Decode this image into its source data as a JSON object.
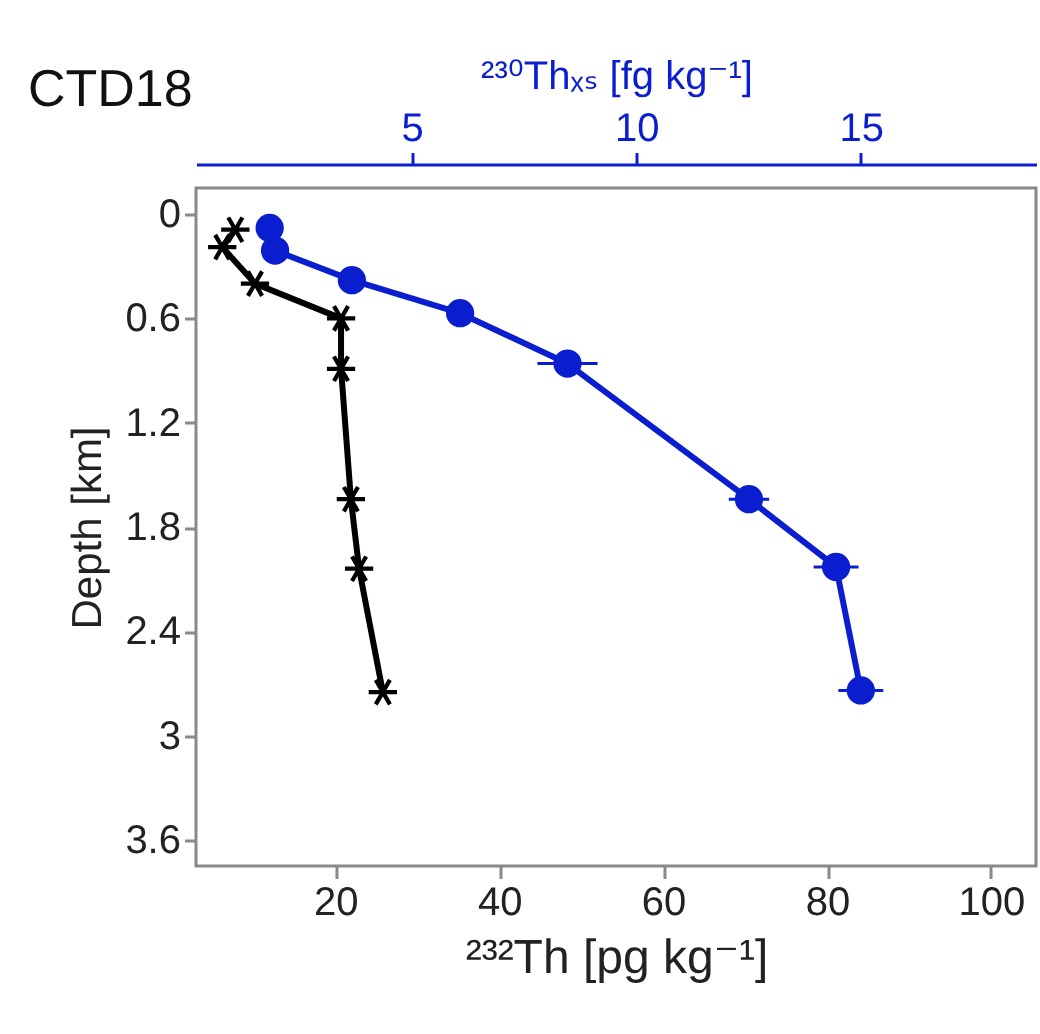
{
  "chart_data": {
    "type": "line",
    "title": "CTD18",
    "xlabel": "²³²Th [pg kg⁻¹]",
    "x2label": "²³⁰Thₓₛ [fg kg⁻¹]",
    "ylabel": "Depth [km]",
    "xlim": [
      3,
      105.5
    ],
    "xticks": [
      20,
      40,
      60,
      80,
      100
    ],
    "x2lim": [
      0.2,
      18.9
    ],
    "x2ticks": [
      5,
      10,
      15
    ],
    "ylim": [
      3.75,
      -0.15
    ],
    "yticks": [
      0,
      0.6,
      1.2,
      1.8,
      2.4,
      3,
      3.6
    ],
    "grid": false,
    "series": [
      {
        "color": "#000000",
        "marker": "cross",
        "x": [
          7.8,
          6.2,
          10.2,
          20.7,
          20.7,
          21.9,
          22.9,
          25.8
        ],
        "values": [
          0.09,
          0.19,
          0.4,
          0.6,
          0.89,
          1.64,
          2.04,
          2.75
        ]
      },
      {
        "color": "#0a1ecf",
        "marker": "circle",
        "axis": "x2",
        "x": [
          1.84,
          1.96,
          3.67,
          6.08,
          8.47,
          12.51,
          14.45,
          15.0
        ],
        "values": [
          0.08,
          0.21,
          0.38,
          0.57,
          0.86,
          1.64,
          2.03,
          2.74
        ],
        "xerrors": [
          null,
          null,
          null,
          0.3,
          0.67,
          0.45,
          0.5,
          0.5
        ]
      }
    ]
  }
}
